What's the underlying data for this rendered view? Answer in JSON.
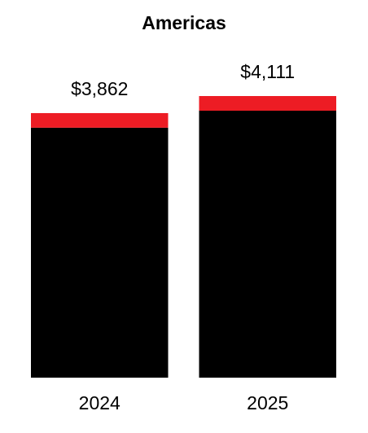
{
  "chart_data": {
    "type": "stacked-bar",
    "title": "Americas",
    "categories": [
      "2024",
      "2025"
    ],
    "series": [
      {
        "color": "#000000",
        "values": [
          3649,
          3897
        ]
      },
      {
        "color": "#ed1c24",
        "values": [
          213,
          214
        ]
      }
    ],
    "totals": [
      3862,
      4111
    ],
    "total_labels": [
      "$3,862",
      "$4,111"
    ]
  }
}
